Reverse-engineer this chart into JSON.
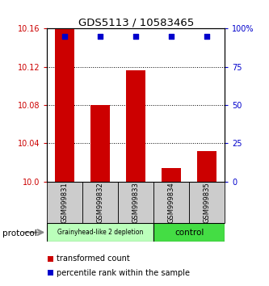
{
  "title": "GDS5113 / 10583465",
  "samples": [
    "GSM999831",
    "GSM999832",
    "GSM999833",
    "GSM999834",
    "GSM999835"
  ],
  "transformed_counts": [
    10.16,
    10.08,
    10.116,
    10.014,
    10.032
  ],
  "percentile_ranks": [
    95,
    95,
    95,
    95,
    95
  ],
  "ylim_left": [
    10.0,
    10.16
  ],
  "ylim_right": [
    0,
    100
  ],
  "yticks_left": [
    10.0,
    10.04,
    10.08,
    10.12,
    10.16
  ],
  "yticks_right": [
    0,
    25,
    50,
    75,
    100
  ],
  "ytick_labels_right": [
    "0",
    "25",
    "50",
    "75",
    "100%"
  ],
  "bar_color": "#cc0000",
  "dot_color": "#0000cc",
  "group1_count": 3,
  "group2_count": 2,
  "group1_label": "Grainyhead-like 2 depletion",
  "group1_color": "#bbffbb",
  "group2_label": "control",
  "group2_color": "#44dd44",
  "protocol_label": "protocol",
  "legend_bar_label": "transformed count",
  "legend_dot_label": "percentile rank within the sample",
  "background_color": "#ffffff",
  "sample_box_color": "#cccccc",
  "bar_width": 0.55,
  "dot_size": 25
}
